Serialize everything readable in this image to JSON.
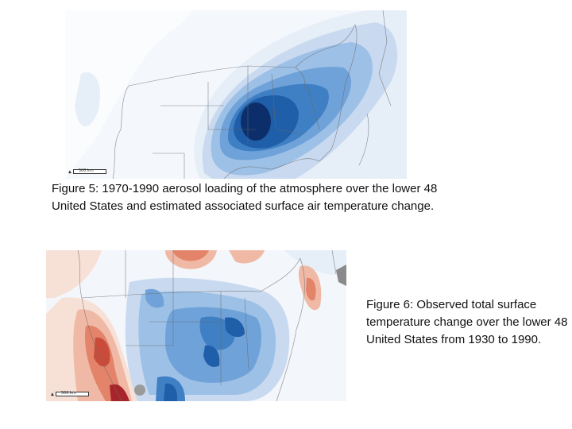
{
  "figure5": {
    "caption": "Figure 5: 1970-1990 aerosol loading of the atmosphere over the lower 48 United States and estimated associated surface air temperature change.",
    "scale_label": "500 km"
  },
  "figure6": {
    "caption": "Figure 6: Observed total surface temperature change over the lower 48 United States from 1930 to 1990.",
    "scale_label": "500 km"
  },
  "colors": {
    "blue_1": "#e6eef8",
    "blue_2": "#c9daf0",
    "blue_3": "#9dc0e6",
    "blue_4": "#6fa2d8",
    "blue_5": "#3f7fc4",
    "blue_6": "#1f5ea8",
    "blue_7": "#0c2f6b",
    "red_1": "#f7e0d6",
    "red_2": "#f0b9a5",
    "red_3": "#e2836a",
    "red_4": "#c94c3b",
    "red_5": "#a6242a"
  }
}
